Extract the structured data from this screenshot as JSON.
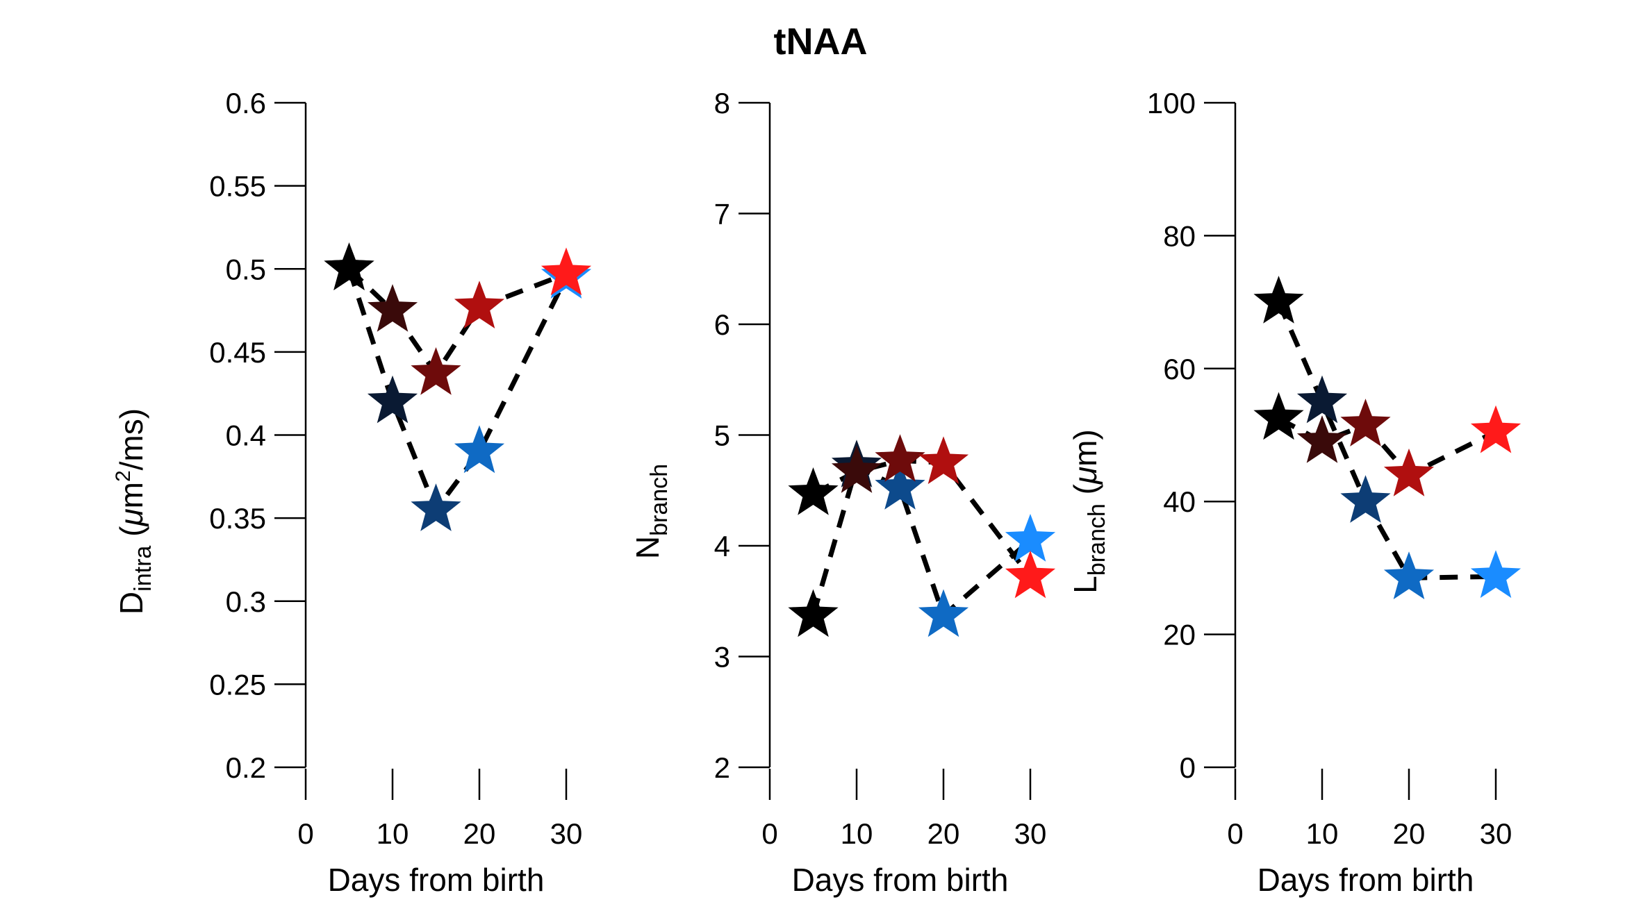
{
  "title": "tNAA",
  "chart_data": [
    {
      "type": "scatter",
      "xlabel": "Days from birth",
      "ylabel": {
        "main": "D",
        "sub": "intra",
        "units_before": " (",
        "mu": "μ",
        "units_mid": "m",
        "sup": "2",
        "units_after": "/ms)"
      },
      "xlim": [
        0,
        30
      ],
      "ylim": [
        0.2,
        0.6
      ],
      "xticks": [
        0,
        10,
        20,
        30
      ],
      "yticks": [
        0.2,
        0.25,
        0.3,
        0.35,
        0.4,
        0.45,
        0.5,
        0.55,
        0.6
      ],
      "ytick_labels": [
        "0.2",
        "0.25",
        "0.3",
        "0.35",
        "0.4",
        "0.45",
        "0.5",
        "0.55",
        "0.6"
      ],
      "grid": false,
      "series": [
        {
          "points": [
            {
              "x": 5,
              "y": 0.5,
              "color": "#000000"
            },
            {
              "x": 10,
              "y": 0.42,
              "color": "#0a1a33"
            },
            {
              "x": 15,
              "y": 0.355,
              "color": "#0d3d75"
            },
            {
              "x": 20,
              "y": 0.39,
              "color": "#0f6ac4"
            },
            {
              "x": 30,
              "y": 0.495,
              "color": "#1a8cff"
            }
          ]
        },
        {
          "points": [
            {
              "x": 5,
              "y": 0.5,
              "color": "#000000"
            },
            {
              "x": 10,
              "y": 0.475,
              "color": "#3a0a0a"
            },
            {
              "x": 15,
              "y": 0.437,
              "color": "#6e0b0b"
            },
            {
              "x": 20,
              "y": 0.477,
              "color": "#b00f0f"
            },
            {
              "x": 30,
              "y": 0.497,
              "color": "#ff1a1a"
            }
          ]
        }
      ]
    },
    {
      "type": "scatter",
      "xlabel": "Days from birth",
      "ylabel": {
        "main": "N",
        "sub": "branch"
      },
      "xlim": [
        0,
        30
      ],
      "ylim": [
        2,
        8
      ],
      "xticks": [
        0,
        10,
        20,
        30
      ],
      "yticks": [
        2,
        3,
        4,
        5,
        6,
        7,
        8
      ],
      "ytick_labels": [
        "2",
        "3",
        "4",
        "5",
        "6",
        "7",
        "8"
      ],
      "grid": false,
      "series": [
        {
          "points": [
            {
              "x": 5,
              "y": 3.37,
              "color": "#000000"
            },
            {
              "x": 10,
              "y": 4.72,
              "color": "#0a1a33"
            },
            {
              "x": 15,
              "y": 4.52,
              "color": "#0d4a8c"
            },
            {
              "x": 20,
              "y": 3.37,
              "color": "#0f6ac4"
            },
            {
              "x": 30,
              "y": 4.05,
              "color": "#1a8cff"
            }
          ]
        },
        {
          "points": [
            {
              "x": 5,
              "y": 4.47,
              "color": "#000000"
            },
            {
              "x": 10,
              "y": 4.67,
              "color": "#3a0a0a"
            },
            {
              "x": 15,
              "y": 4.77,
              "color": "#6e0b0b"
            },
            {
              "x": 20,
              "y": 4.75,
              "color": "#b00f0f"
            },
            {
              "x": 30,
              "y": 3.72,
              "color": "#ff1a1a"
            }
          ]
        }
      ]
    },
    {
      "type": "scatter",
      "xlabel": "Days from birth",
      "ylabel": {
        "main": "L",
        "sub": "branch",
        "units_before": " (",
        "mu": "μ",
        "units_mid": "m",
        "units_after": ")"
      },
      "xlim": [
        0,
        30
      ],
      "ylim": [
        0,
        100
      ],
      "xticks": [
        0,
        10,
        20,
        30
      ],
      "yticks": [
        0,
        20,
        40,
        60,
        80,
        100
      ],
      "ytick_labels": [
        "0",
        "20",
        "40",
        "60",
        "80",
        "100"
      ],
      "grid": false,
      "series": [
        {
          "points": [
            {
              "x": 5,
              "y": 70,
              "color": "#000000"
            },
            {
              "x": 10,
              "y": 55,
              "color": "#0a1a33"
            },
            {
              "x": 15,
              "y": 40,
              "color": "#0d3d75"
            },
            {
              "x": 20,
              "y": 28.5,
              "color": "#0f6ac4"
            },
            {
              "x": 30,
              "y": 28.7,
              "color": "#1a8cff"
            }
          ]
        },
        {
          "points": [
            {
              "x": 5,
              "y": 52.5,
              "color": "#000000"
            },
            {
              "x": 10,
              "y": 49,
              "color": "#3a0a0a"
            },
            {
              "x": 15,
              "y": 51.5,
              "color": "#6e0b0b"
            },
            {
              "x": 20,
              "y": 44,
              "color": "#b00f0f"
            },
            {
              "x": 30,
              "y": 50.5,
              "color": "#ff1a1a"
            }
          ]
        }
      ]
    }
  ]
}
